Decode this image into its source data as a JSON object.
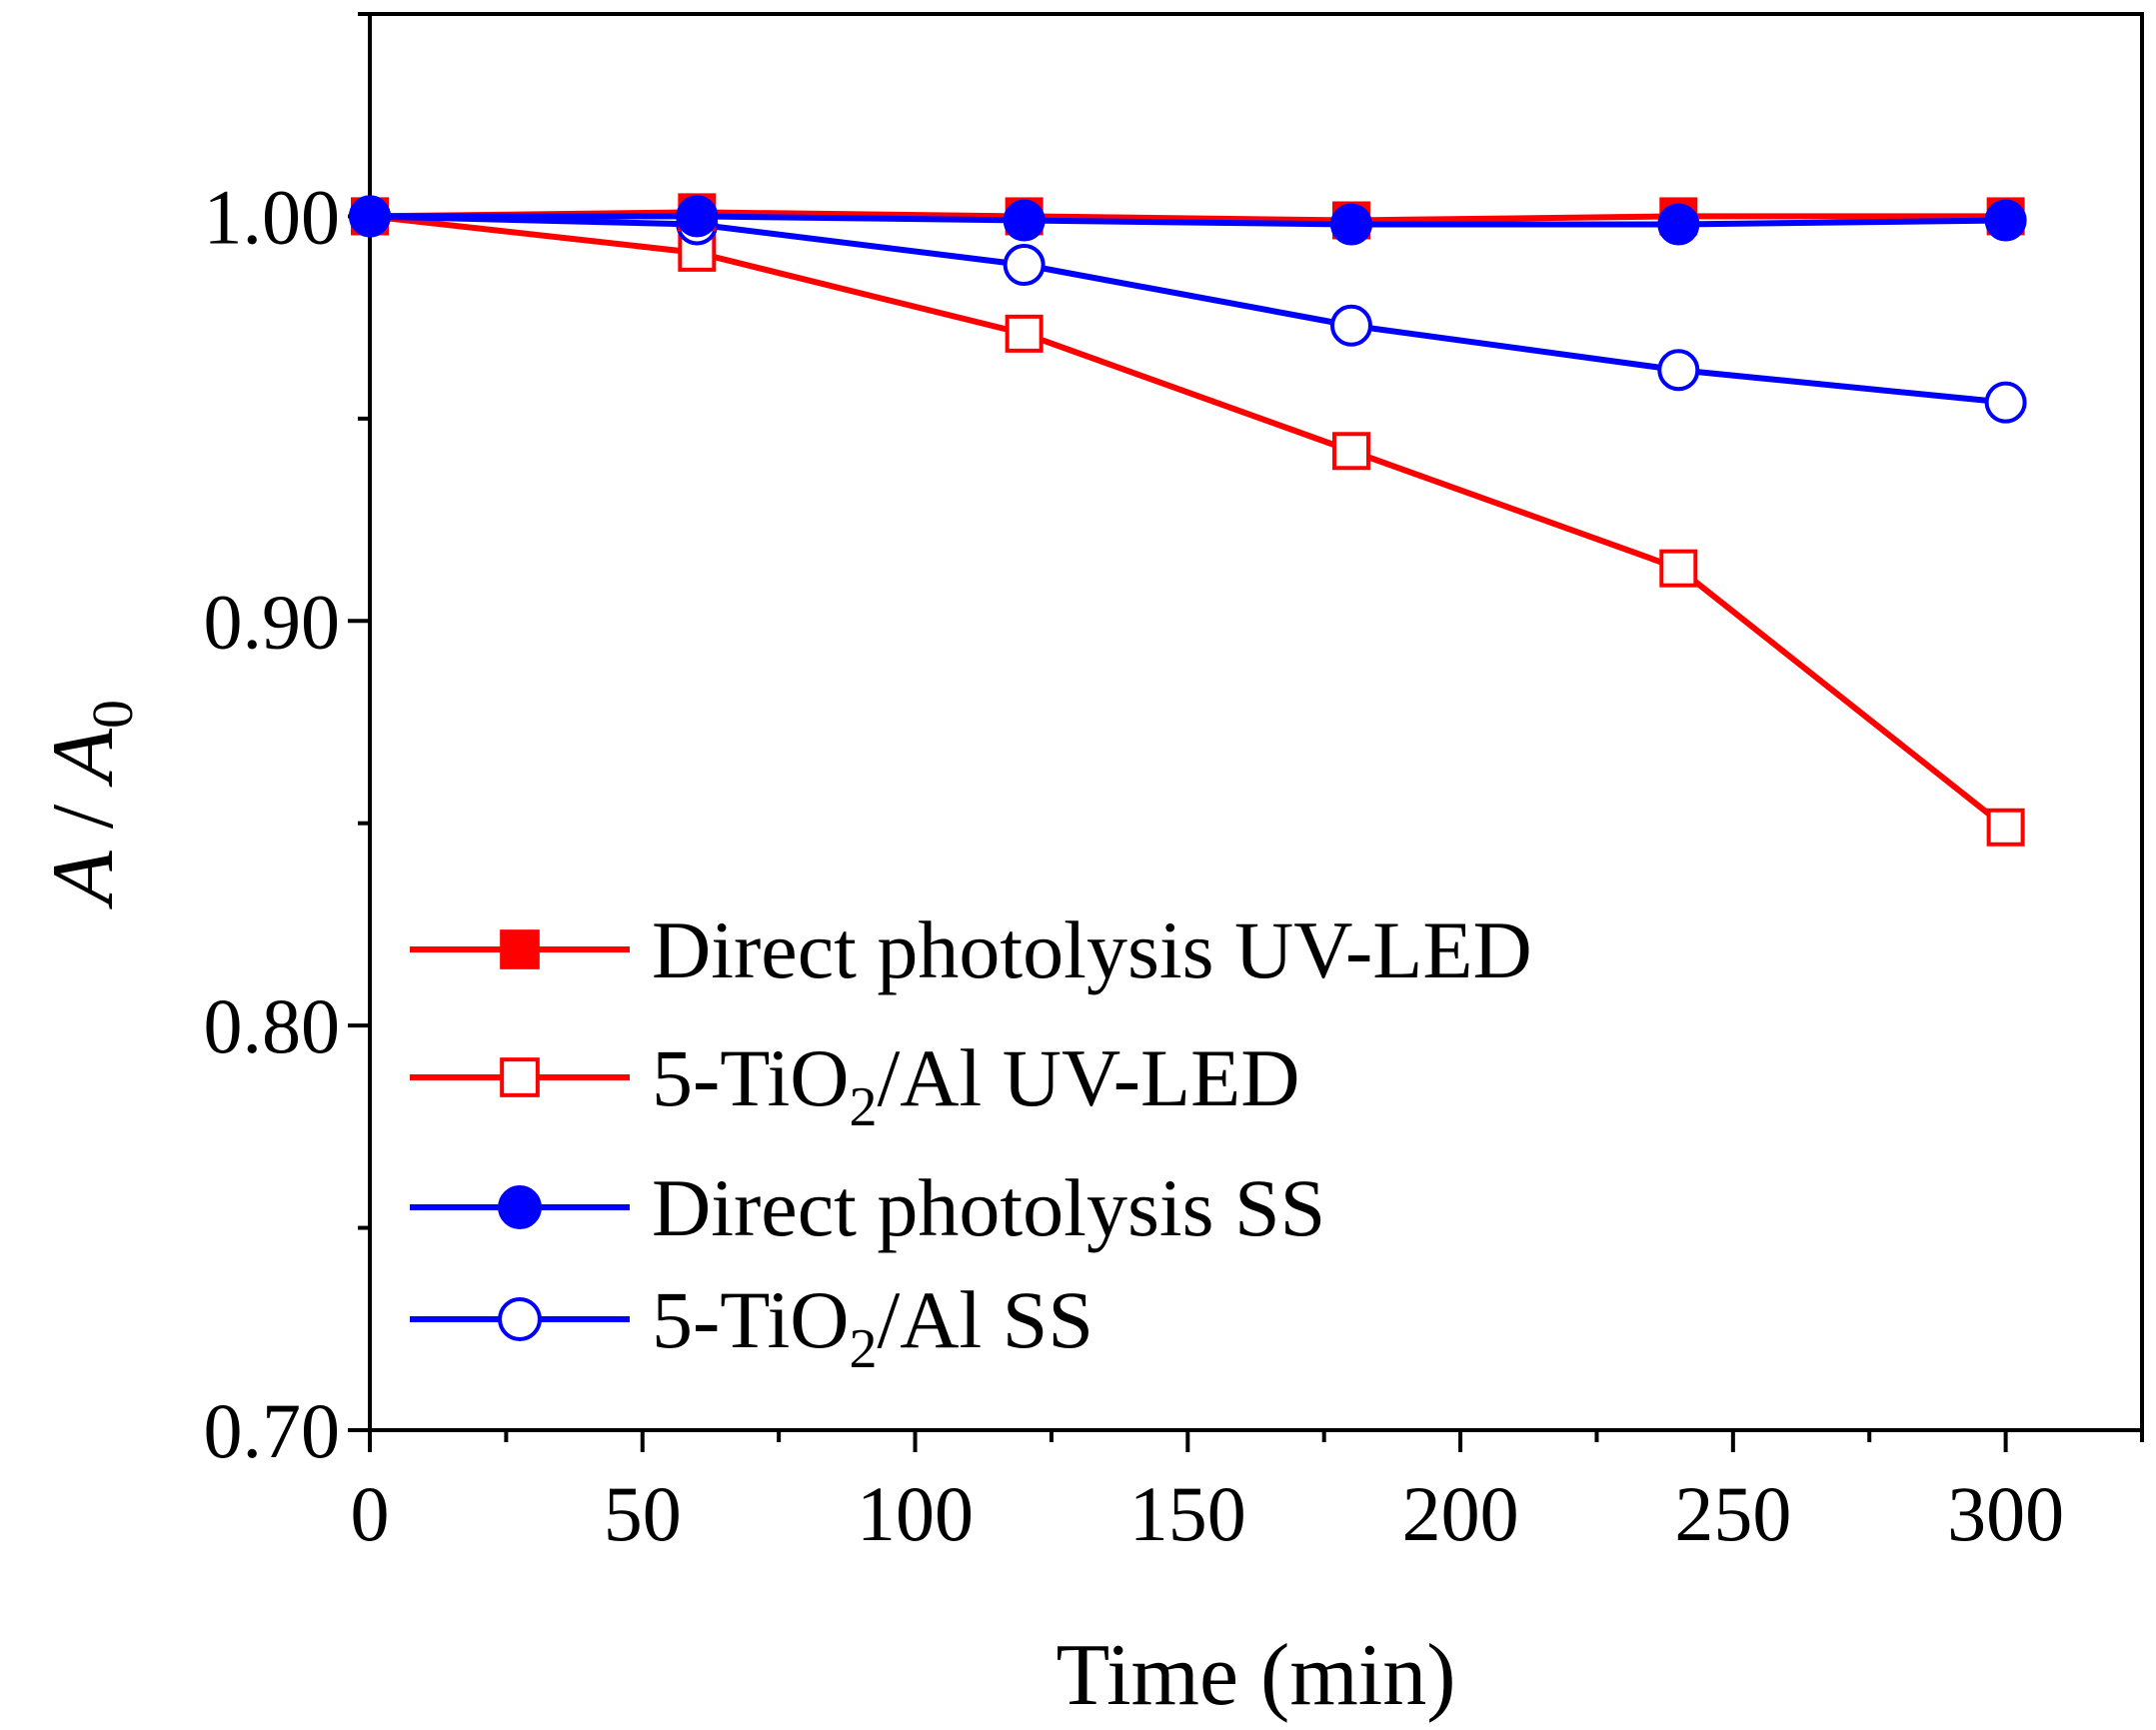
{
  "chart_data": {
    "type": "line",
    "xlabel": "Time (min)",
    "ylabel": {
      "main": "A",
      "sep": " / ",
      "denom": "A",
      "denom_sub": "0"
    },
    "xlim": [
      0,
      325
    ],
    "ylim": [
      0.7,
      1.05
    ],
    "x_ticks": [
      0,
      50,
      100,
      150,
      200,
      250,
      300
    ],
    "x_tick_labels": [
      "0",
      "50",
      "100",
      "150",
      "200",
      "250",
      "300"
    ],
    "x_minor_ticks": [
      25,
      75,
      125,
      175,
      225,
      275,
      325
    ],
    "y_ticks": [
      0.7,
      0.8,
      0.9,
      1.0
    ],
    "y_tick_labels": [
      "0.70",
      "0.80",
      "0.90",
      "1.00"
    ],
    "y_minor_ticks": [
      0.75,
      0.85,
      0.95,
      1.05
    ],
    "grid": false,
    "legend_position": "bottom-left",
    "x": [
      0,
      60,
      120,
      180,
      240,
      300
    ],
    "series": [
      {
        "name": "Direct photolysis UV-LED",
        "label_parts": [
          {
            "t": "Direct photolysis UV-LED"
          }
        ],
        "color": "#ff0000",
        "marker": "square",
        "filled": true,
        "values": [
          1.0,
          1.001,
          1.0,
          0.999,
          1.0,
          1.0
        ]
      },
      {
        "name": "5-TiO2/Al UV-LED",
        "label_parts": [
          {
            "t": "5-TiO"
          },
          {
            "t": "2",
            "sub": true
          },
          {
            "t": "/Al UV-LED"
          }
        ],
        "color": "#ff0000",
        "marker": "square",
        "filled": false,
        "values": [
          1.0,
          0.991,
          0.971,
          0.942,
          0.913,
          0.849
        ]
      },
      {
        "name": "Direct photolysis SS",
        "label_parts": [
          {
            "t": "Direct photolysis SS"
          }
        ],
        "color": "#0000ff",
        "marker": "circle",
        "filled": true,
        "values": [
          1.0,
          1.0,
          0.999,
          0.998,
          0.998,
          0.999
        ]
      },
      {
        "name": "5-TiO2/Al SS",
        "label_parts": [
          {
            "t": "5-TiO"
          },
          {
            "t": "2",
            "sub": true
          },
          {
            "t": "/Al SS"
          }
        ],
        "color": "#0000ff",
        "marker": "circle",
        "filled": false,
        "values": [
          1.0,
          0.998,
          0.988,
          0.973,
          0.962,
          0.954
        ]
      }
    ]
  }
}
